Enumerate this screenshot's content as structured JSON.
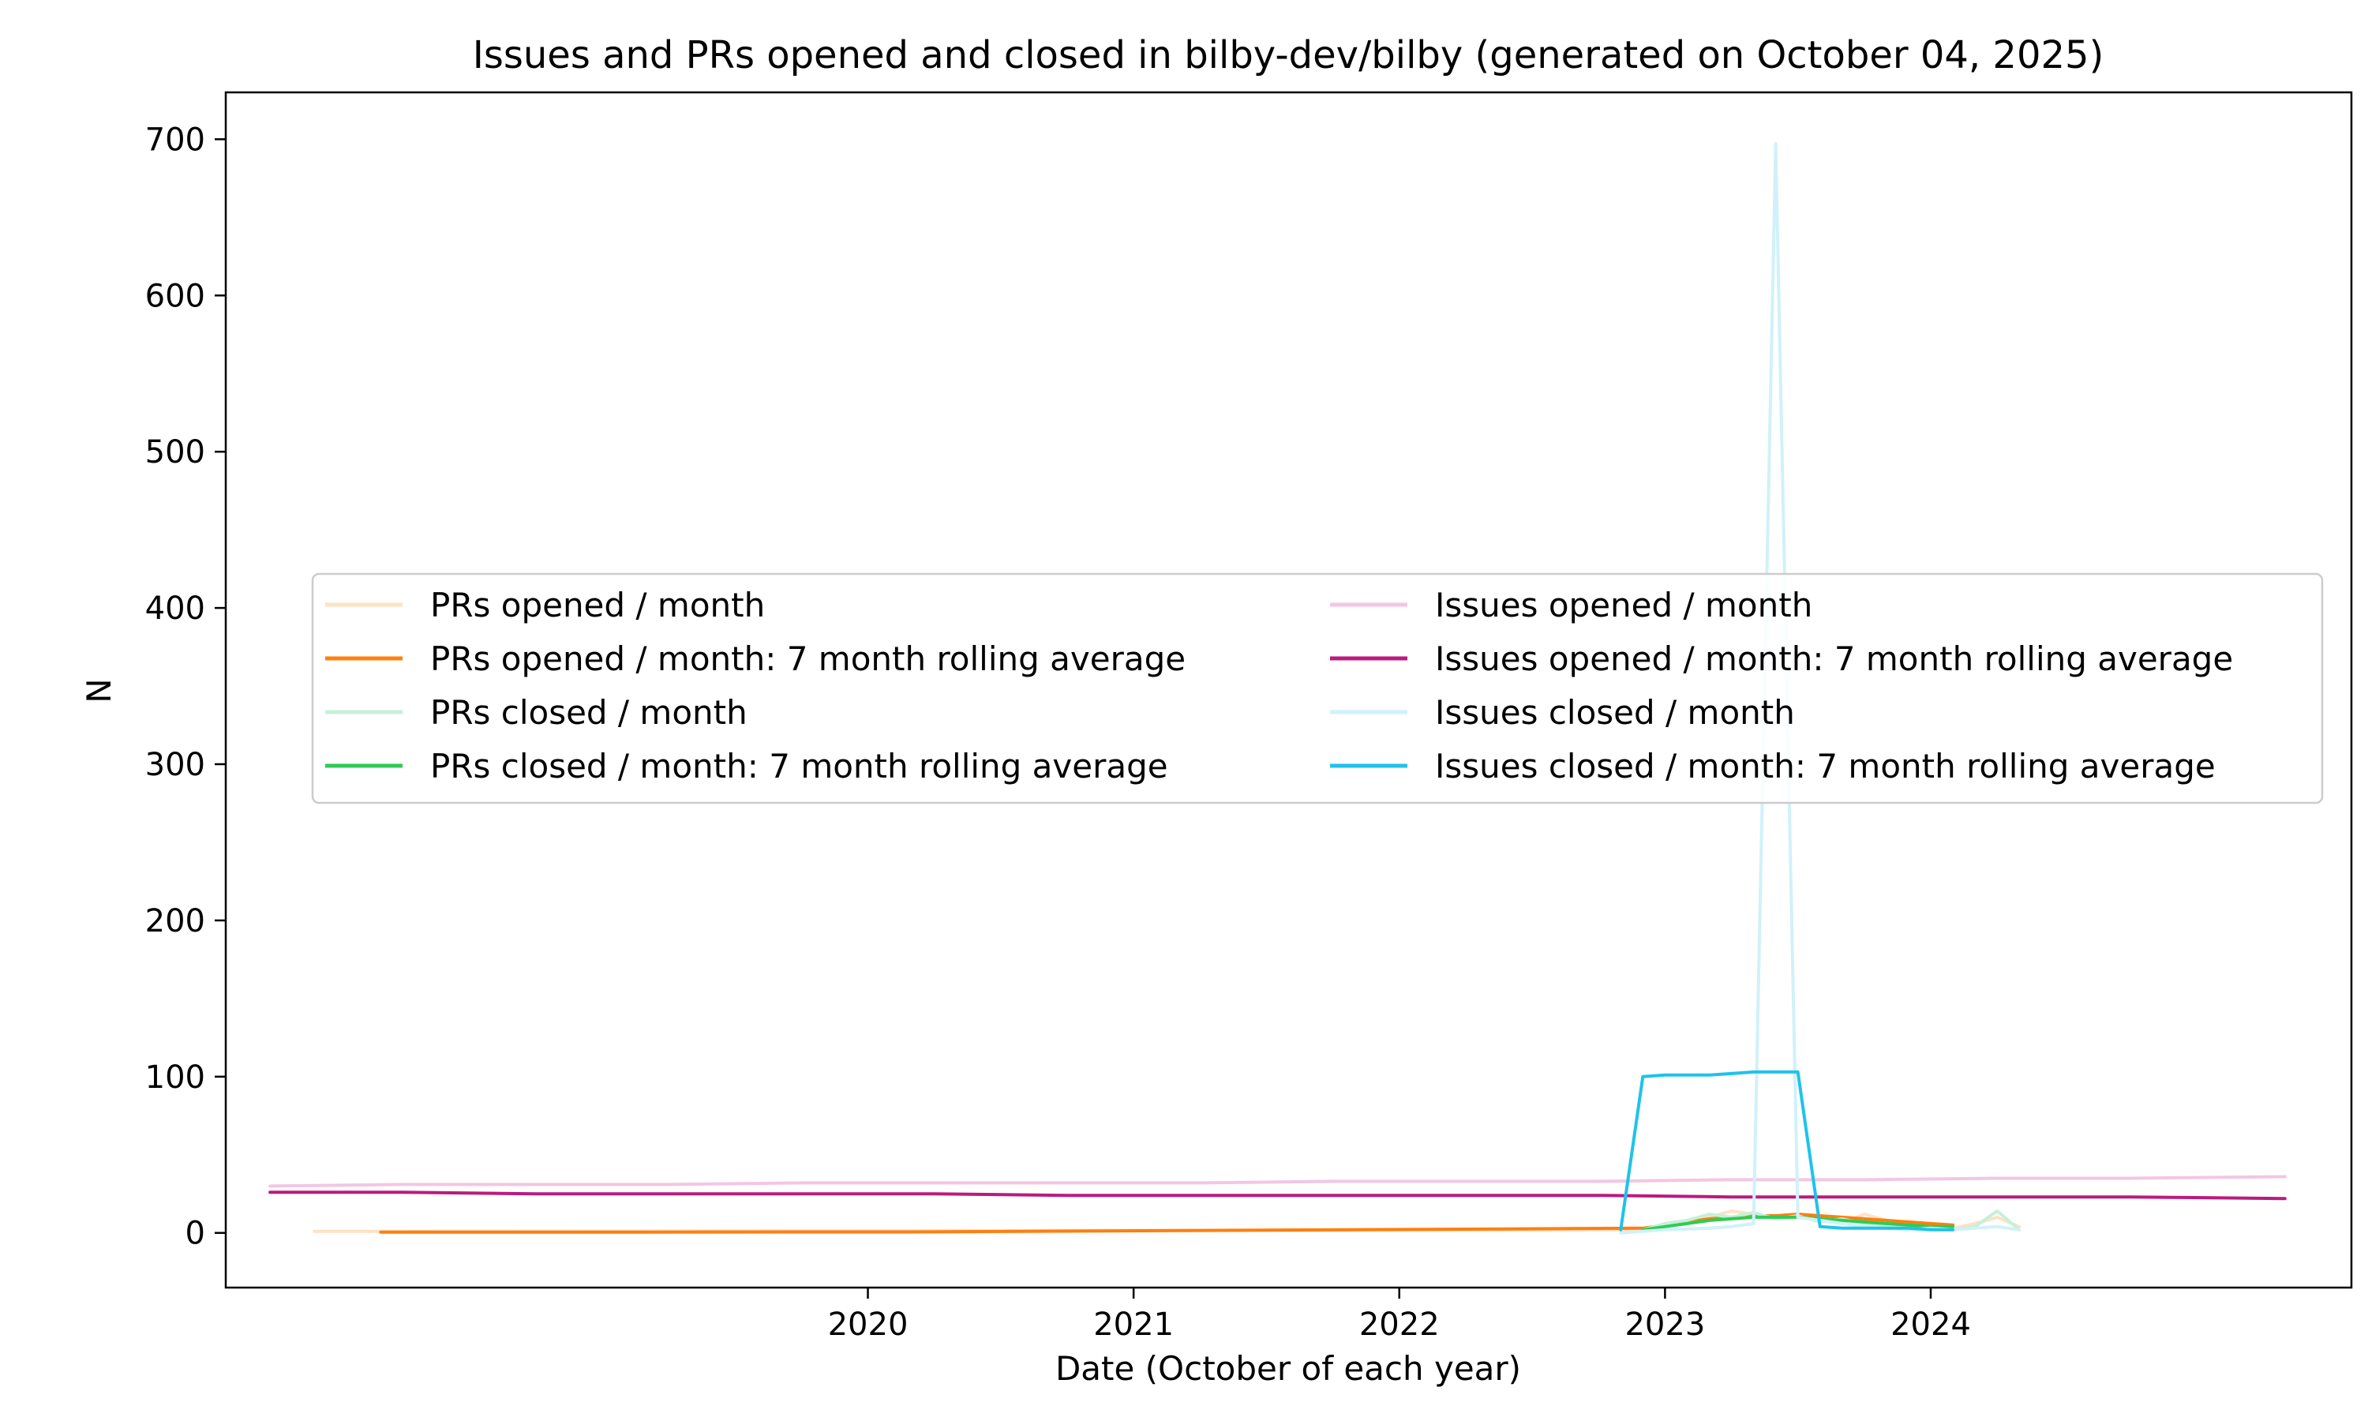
{
  "chart_data": {
    "type": "line",
    "title": "Issues and PRs opened and closed in bilby-dev/bilby (generated on October 04, 2025)",
    "xlabel": "Date (October of each year)",
    "ylabel": "N",
    "x_ticks": [
      {
        "label": "2020",
        "value": "2020-10"
      },
      {
        "label": "2021",
        "value": "2021-10"
      },
      {
        "label": "2022",
        "value": "2022-10"
      },
      {
        "label": "2023",
        "value": "2023-10"
      },
      {
        "label": "2024",
        "value": "2024-10"
      }
    ],
    "xlim": [
      "2018-05",
      "2026-05"
    ],
    "ylim": [
      -35,
      730
    ],
    "y_ticks": [
      0,
      100,
      200,
      300,
      400,
      500,
      600,
      700
    ],
    "grid": false,
    "legend_position": "center-left",
    "legend_columns": 2,
    "series": [
      {
        "name": "PRs opened / month",
        "color": "#fde2c4",
        "width": 4,
        "points": [
          [
            "2018-09",
            1
          ],
          [
            "2018-10",
            1
          ],
          [
            "2018-11",
            1
          ],
          [
            "2018-12",
            1
          ],
          [
            "2023-09",
            2
          ],
          [
            "2023-10",
            4
          ],
          [
            "2023-11",
            8
          ],
          [
            "2023-12",
            10
          ],
          [
            "2024-01",
            14
          ],
          [
            "2024-02",
            12
          ],
          [
            "2024-03",
            10
          ],
          [
            "2024-04",
            12
          ],
          [
            "2024-05",
            8
          ],
          [
            "2024-06",
            6
          ],
          [
            "2024-07",
            12
          ],
          [
            "2024-08",
            8
          ],
          [
            "2024-09",
            6
          ],
          [
            "2024-10",
            4
          ],
          [
            "2024-11",
            3
          ],
          [
            "2024-12",
            6
          ],
          [
            "2025-01",
            10
          ],
          [
            "2025-02",
            4
          ]
        ]
      },
      {
        "name": "PRs opened / month: 7 month rolling average",
        "color": "#ff7f0e",
        "width": 4,
        "points": [
          [
            "2018-12",
            0.5
          ],
          [
            "2019-06",
            0.5
          ],
          [
            "2019-12",
            0.5
          ],
          [
            "2020-06",
            0.6
          ],
          [
            "2020-12",
            0.6
          ],
          [
            "2023-09",
            3
          ],
          [
            "2023-10",
            5
          ],
          [
            "2023-11",
            7
          ],
          [
            "2023-12",
            9
          ],
          [
            "2024-01",
            10
          ],
          [
            "2024-02",
            11
          ],
          [
            "2024-03",
            11
          ],
          [
            "2024-04",
            12
          ],
          [
            "2024-05",
            11
          ],
          [
            "2024-06",
            10
          ],
          [
            "2024-07",
            9
          ],
          [
            "2024-08",
            8
          ],
          [
            "2024-09",
            7
          ],
          [
            "2024-10",
            6
          ],
          [
            "2024-11",
            5
          ]
        ]
      },
      {
        "name": "PRs closed / month",
        "color": "#c5f0d8",
        "width": 4,
        "points": [
          [
            "2023-09",
            2
          ],
          [
            "2023-10",
            6
          ],
          [
            "2023-11",
            8
          ],
          [
            "2023-12",
            12
          ],
          [
            "2024-01",
            10
          ],
          [
            "2024-02",
            13
          ],
          [
            "2024-03",
            9
          ],
          [
            "2024-04",
            11
          ],
          [
            "2024-05",
            7
          ],
          [
            "2024-06",
            9
          ],
          [
            "2024-07",
            6
          ],
          [
            "2024-08",
            5
          ],
          [
            "2024-09",
            4
          ],
          [
            "2024-10",
            3
          ],
          [
            "2024-11",
            2
          ],
          [
            "2024-12",
            4
          ],
          [
            "2025-01",
            14
          ],
          [
            "2025-02",
            2
          ]
        ]
      },
      {
        "name": "PRs closed / month: 7 month rolling average",
        "color": "#2ecc52",
        "width": 4,
        "points": [
          [
            "2023-09",
            2
          ],
          [
            "2023-10",
            4
          ],
          [
            "2023-11",
            6
          ],
          [
            "2023-12",
            8
          ],
          [
            "2024-01",
            9
          ],
          [
            "2024-02",
            10
          ],
          [
            "2024-03",
            10
          ],
          [
            "2024-04",
            10
          ],
          [
            "2024-05",
            9
          ],
          [
            "2024-06",
            8
          ],
          [
            "2024-07",
            7
          ],
          [
            "2024-08",
            6
          ],
          [
            "2024-09",
            5
          ],
          [
            "2024-10",
            4
          ],
          [
            "2024-11",
            4
          ]
        ]
      },
      {
        "name": "Issues opened / month",
        "color": "#f3c6e3",
        "width": 4,
        "points": [
          [
            "2018-07",
            30
          ],
          [
            "2019-01",
            31
          ],
          [
            "2019-07",
            31
          ],
          [
            "2020-01",
            31
          ],
          [
            "2020-07",
            32
          ],
          [
            "2021-01",
            32
          ],
          [
            "2021-07",
            32
          ],
          [
            "2022-01",
            32
          ],
          [
            "2022-07",
            33
          ],
          [
            "2023-01",
            33
          ],
          [
            "2023-07",
            33
          ],
          [
            "2024-01",
            34
          ],
          [
            "2024-07",
            34
          ],
          [
            "2025-01",
            35
          ],
          [
            "2025-07",
            35
          ],
          [
            "2026-02",
            36
          ]
        ]
      },
      {
        "name": "Issues opened / month: 7 month rolling average",
        "color": "#bc1a7e",
        "width": 4,
        "points": [
          [
            "2018-07",
            26
          ],
          [
            "2019-01",
            26
          ],
          [
            "2019-07",
            25
          ],
          [
            "2020-01",
            25
          ],
          [
            "2020-07",
            25
          ],
          [
            "2021-01",
            25
          ],
          [
            "2021-07",
            24
          ],
          [
            "2022-01",
            24
          ],
          [
            "2022-07",
            24
          ],
          [
            "2023-01",
            24
          ],
          [
            "2023-07",
            24
          ],
          [
            "2024-01",
            23
          ],
          [
            "2024-07",
            23
          ],
          [
            "2025-01",
            23
          ],
          [
            "2025-07",
            23
          ],
          [
            "2026-02",
            22
          ]
        ]
      },
      {
        "name": "Issues closed / month",
        "color": "#d0f1fa",
        "width": 4,
        "points": [
          [
            "2023-08",
            0
          ],
          [
            "2023-10",
            2
          ],
          [
            "2023-12",
            3
          ],
          [
            "2024-01",
            4
          ],
          [
            "2024-02",
            6
          ],
          [
            "2024-03",
            697
          ],
          [
            "2024-04",
            10
          ],
          [
            "2024-05",
            8
          ],
          [
            "2024-06",
            6
          ],
          [
            "2024-07",
            4
          ],
          [
            "2024-08",
            3
          ],
          [
            "2024-09",
            2
          ],
          [
            "2024-10",
            3
          ],
          [
            "2024-11",
            2
          ],
          [
            "2024-12",
            3
          ],
          [
            "2025-01",
            4
          ],
          [
            "2025-02",
            2
          ]
        ]
      },
      {
        "name": "Issues closed / month: 7 month rolling average",
        "color": "#1ec3ea",
        "width": 4,
        "points": [
          [
            "2023-08",
            2
          ],
          [
            "2023-09",
            100
          ],
          [
            "2023-10",
            101
          ],
          [
            "2023-11",
            101
          ],
          [
            "2023-12",
            101
          ],
          [
            "2024-01",
            102
          ],
          [
            "2024-02",
            103
          ],
          [
            "2024-03",
            103
          ],
          [
            "2024-04",
            103
          ],
          [
            "2024-05",
            4
          ],
          [
            "2024-06",
            3
          ],
          [
            "2024-07",
            3
          ],
          [
            "2024-08",
            3
          ],
          [
            "2024-09",
            3
          ],
          [
            "2024-10",
            2
          ],
          [
            "2024-11",
            2
          ]
        ]
      }
    ]
  }
}
